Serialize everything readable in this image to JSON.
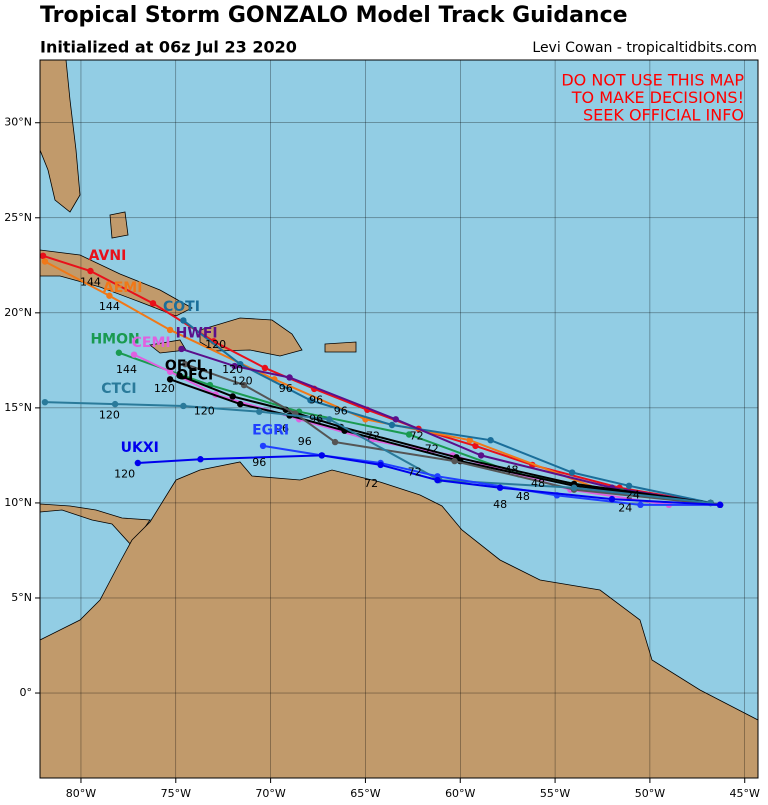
{
  "chart_data": {
    "type": "map",
    "title": "Tropical Storm GONZALO Model Track Guidance",
    "subtitle": "Initialized at 06z Jul 23 2020",
    "credit": "Levi Cowan - tropicaltidbits.com",
    "warning": [
      "DO NOT USE THIS MAP",
      "TO MAKE DECISIONS!",
      "SEEK OFFICIAL INFO"
    ],
    "xlim": [
      -82.16,
      -44.3
    ],
    "ylim": [
      -4.47,
      33.3
    ],
    "xticks": [
      {
        "value": -80,
        "label": "80°W"
      },
      {
        "value": -75,
        "label": "75°W"
      },
      {
        "value": -70,
        "label": "70°W"
      },
      {
        "value": -65,
        "label": "65°W"
      },
      {
        "value": -60,
        "label": "60°W"
      },
      {
        "value": -55,
        "label": "55°W"
      },
      {
        "value": -50,
        "label": "50°W"
      },
      {
        "value": -45,
        "label": "45°W"
      }
    ],
    "yticks": [
      {
        "value": 0,
        "label": "0°"
      },
      {
        "value": 5,
        "label": "5°N"
      },
      {
        "value": 10,
        "label": "10°N"
      },
      {
        "value": 15,
        "label": "15°N"
      },
      {
        "value": 20,
        "label": "20°N"
      },
      {
        "value": 25,
        "label": "25°N"
      },
      {
        "value": 30,
        "label": "30°N"
      }
    ],
    "grid": true,
    "series": [
      {
        "name": "AVNI",
        "color": "#e8101a",
        "lon": [
          -46.3,
          -51.6,
          -56.2,
          -59.2,
          -62.2,
          -64.9,
          -67.7,
          -70.3,
          -73.0,
          -76.2,
          -79.5,
          -82.0
        ],
        "lat": [
          9.9,
          10.8,
          12.0,
          13.0,
          13.9,
          14.9,
          16.0,
          17.1,
          18.5,
          20.5,
          22.2,
          23.0
        ],
        "label_pos": [
          -78.6,
          23.0
        ]
      },
      {
        "name": "AEMI",
        "color": "#f07818",
        "lon": [
          -46.3,
          -52.6,
          -59.5,
          -65.0,
          -69.8,
          -75.3,
          -78.5,
          -81.9
        ],
        "lat": [
          9.9,
          10.7,
          13.3,
          14.4,
          16.5,
          19.1,
          20.9,
          22.7
        ],
        "label_pos": [
          -77.8,
          21.3
        ]
      },
      {
        "name": "COTI",
        "color": "#1a6e9a",
        "lon": [
          -46.3,
          -51.1,
          -54.1,
          -58.4,
          -63.6,
          -67.9,
          -71.6,
          -74.6
        ],
        "lat": [
          9.9,
          10.9,
          11.6,
          13.3,
          14.1,
          15.4,
          17.3,
          19.6
        ],
        "label_pos": [
          -74.7,
          20.3
        ]
      },
      {
        "name": "HWFI",
        "color": "#5b0f8a",
        "lon": [
          -46.3,
          -52.0,
          -58.9,
          -63.4,
          -69.0,
          -71.9,
          -74.7
        ],
        "lat": [
          9.9,
          10.8,
          12.5,
          14.4,
          16.6,
          17.2,
          18.1
        ],
        "label_pos": [
          -73.9,
          18.9
        ]
      },
      {
        "name": "HMON",
        "color": "#1a9a50",
        "lon": [
          -46.3,
          -51.5,
          -56.9,
          -62.7,
          -68.5,
          -73.2,
          -78.0
        ],
        "lat": [
          9.9,
          10.6,
          11.5,
          13.6,
          14.8,
          16.2,
          17.9
        ],
        "label_pos": [
          -78.2,
          18.6
        ]
      },
      {
        "name": "CEMI",
        "color": "#e060e0",
        "lon": [
          -46.3,
          -49.0,
          -54.2,
          -60.4,
          -64.7,
          -68.5,
          -72.9,
          -75.3,
          -77.2
        ],
        "lat": [
          9.9,
          9.9,
          10.7,
          12.5,
          13.3,
          14.4,
          15.7,
          16.9,
          17.8
        ],
        "label_pos": [
          -76.3,
          18.4
        ]
      },
      {
        "name": "OFCL",
        "color": "#000000",
        "lon": [
          -46.8,
          -54.0,
          -60.0,
          -66.1,
          -69.0,
          -71.6,
          -75.3
        ],
        "lat": [
          10.0,
          10.9,
          12.2,
          13.8,
          14.6,
          15.2,
          16.5
        ],
        "label_pos": [
          -74.5,
          17.2
        ]
      },
      {
        "name": "OFCI",
        "color": "#000000",
        "lon": [
          -46.8,
          -54.0,
          -60.2,
          -66.3,
          -69.2,
          -72.0,
          -74.8
        ],
        "lat": [
          10.0,
          11.0,
          12.4,
          14.0,
          14.9,
          15.6,
          16.7
        ],
        "label_pos": [
          -74.0,
          16.7
        ]
      },
      {
        "color": "#555555",
        "lon": [
          -46.3,
          -54.0,
          -60.3,
          -66.6,
          -68.7,
          -71.4,
          -74.5
        ],
        "lat": [
          9.9,
          10.7,
          12.2,
          13.2,
          14.7,
          16.2,
          17.3
        ]
      },
      {
        "name": "CTCI",
        "color": "#2a7a9a",
        "lon": [
          -46.8,
          -54.0,
          -61.1,
          -66.9,
          -70.6,
          -74.6,
          -78.2,
          -81.9
        ],
        "lat": [
          10.0,
          10.8,
          11.2,
          14.4,
          14.8,
          15.1,
          15.2,
          15.3
        ],
        "label_pos": [
          -78.0,
          16.0
        ]
      },
      {
        "name": "EGRI",
        "color": "#1f3fff",
        "lon": [
          -46.3,
          -50.5,
          -54.9,
          -61.2,
          -64.2,
          -67.3,
          -70.4
        ],
        "lat": [
          9.9,
          9.9,
          10.4,
          11.4,
          12.1,
          12.5,
          13.0
        ],
        "label_pos": [
          -70.0,
          13.8
        ]
      },
      {
        "name": "UKXI",
        "color": "#0000ee",
        "lon": [
          -46.3,
          -52.0,
          -57.9,
          -61.2,
          -64.2,
          -67.3,
          -73.7,
          -77.0
        ],
        "lat": [
          9.9,
          10.2,
          10.8,
          11.2,
          12.0,
          12.5,
          12.3,
          12.1
        ],
        "label_pos": [
          -76.9,
          12.9
        ]
      }
    ],
    "hour_labels": [
      {
        "text": "144",
        "lon": -79.5,
        "lat": 21.6
      },
      {
        "text": "144",
        "lon": -78.5,
        "lat": 20.3
      },
      {
        "text": "120",
        "lon": -72.9,
        "lat": 18.3
      },
      {
        "text": "120",
        "lon": -72.0,
        "lat": 17.0
      },
      {
        "text": "120",
        "lon": -71.5,
        "lat": 16.4
      },
      {
        "text": "120",
        "lon": -75.6,
        "lat": 16.0
      },
      {
        "text": "144",
        "lon": -77.6,
        "lat": 17.0
      },
      {
        "text": "120",
        "lon": -78.5,
        "lat": 14.6
      },
      {
        "text": "120",
        "lon": -73.5,
        "lat": 14.8
      },
      {
        "text": "120",
        "lon": -77.7,
        "lat": 11.5
      },
      {
        "text": "96",
        "lon": -69.2,
        "lat": 16.0
      },
      {
        "text": "96",
        "lon": -67.6,
        "lat": 15.4
      },
      {
        "text": "96",
        "lon": -66.3,
        "lat": 14.8
      },
      {
        "text": "96",
        "lon": -67.6,
        "lat": 14.4
      },
      {
        "text": "96",
        "lon": -69.4,
        "lat": 13.9
      },
      {
        "text": "96",
        "lon": -68.2,
        "lat": 13.2
      },
      {
        "text": "96",
        "lon": -70.6,
        "lat": 12.1
      },
      {
        "text": "72",
        "lon": -64.6,
        "lat": 13.5
      },
      {
        "text": "72",
        "lon": -62.3,
        "lat": 13.5
      },
      {
        "text": "72",
        "lon": -61.5,
        "lat": 12.8
      },
      {
        "text": "72",
        "lon": -62.4,
        "lat": 11.6
      },
      {
        "text": "72",
        "lon": -64.7,
        "lat": 11.0
      },
      {
        "text": "48",
        "lon": -57.3,
        "lat": 11.7
      },
      {
        "text": "48",
        "lon": -55.9,
        "lat": 11.0
      },
      {
        "text": "48",
        "lon": -57.9,
        "lat": 9.9
      },
      {
        "text": "48",
        "lon": -56.7,
        "lat": 10.3
      },
      {
        "text": "24",
        "lon": -50.9,
        "lat": 10.4
      },
      {
        "text": "24",
        "lon": -51.3,
        "lat": 9.7
      }
    ]
  }
}
